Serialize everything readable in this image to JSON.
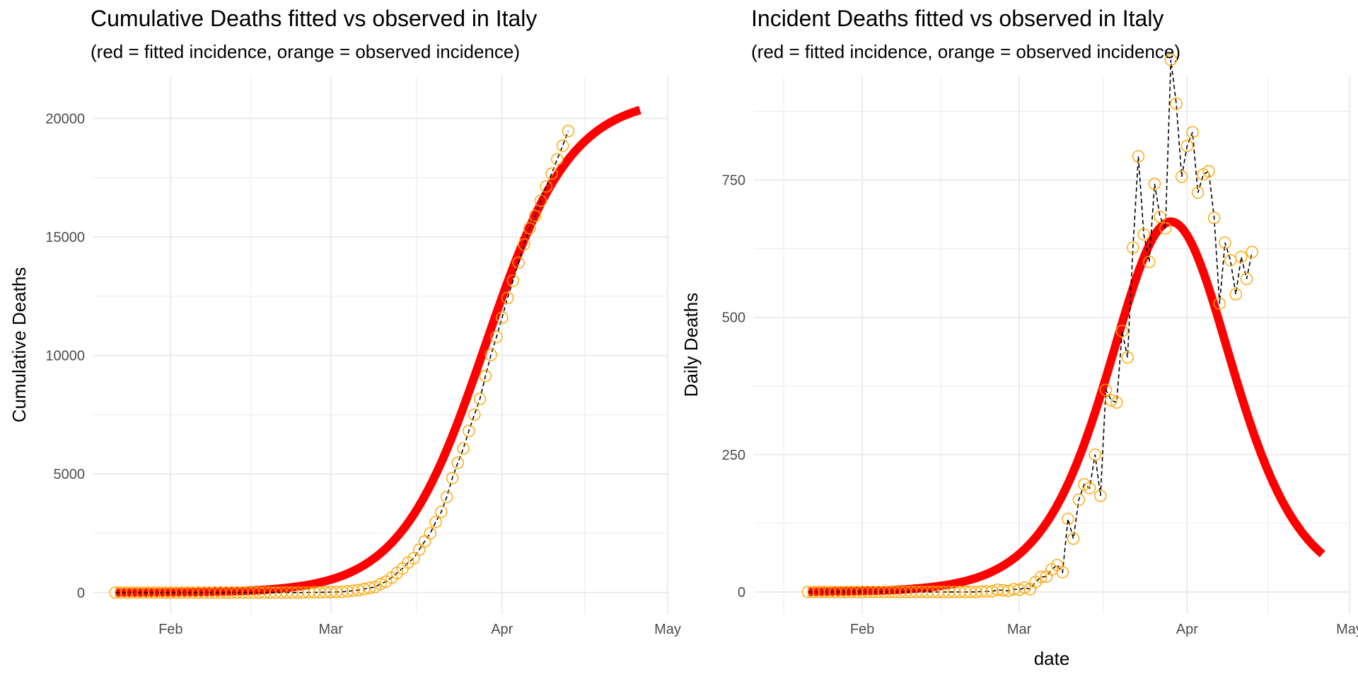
{
  "charts": {
    "left": {
      "title": "Cumulative Deaths fitted vs observed in Italy",
      "subtitle": "(red = fitted incidence, orange = observed incidence)"
    },
    "right": {
      "title": "Incident Deaths fitted vs observed in Italy",
      "subtitle": "(red = fitted incidence, orange = observed incidence)"
    }
  },
  "colors": {
    "fitted": "#ff0000",
    "observed": "#ffa500",
    "connector": "#000000",
    "grid": "#ebebeb"
  },
  "chart_data": [
    {
      "type": "line",
      "title": "Cumulative Deaths fitted vs observed in Italy",
      "subtitle": "(red = fitted incidence, orange = observed incidence)",
      "xlabel": "",
      "ylabel": "Cumulative Deaths",
      "x_axis": "date",
      "xlim": [
        "2020-01-18",
        "2020-05-01"
      ],
      "ylim": [
        -900,
        21800
      ],
      "x_ticks": [
        {
          "date": "2020-02-01",
          "label": "Feb"
        },
        {
          "date": "2020-03-01",
          "label": "Mar"
        },
        {
          "date": "2020-04-01",
          "label": "Apr"
        },
        {
          "date": "2020-05-01",
          "label": "May"
        }
      ],
      "y_ticks": [
        0,
        5000,
        10000,
        15000,
        20000
      ],
      "y_tick_labels": [
        "0",
        "5000",
        "10000",
        "15000",
        "20000"
      ],
      "grid": true,
      "fitted_start_date": "2020-01-22",
      "fitted_end_date": "2020-04-26",
      "fitted_total": 20900,
      "fitted_peak_date": "2020-03-29",
      "fitted_spread_days": 7.75,
      "observed_start_date": "2020-01-22",
      "observed_values": [
        0,
        0,
        0,
        0,
        0,
        0,
        0,
        0,
        0,
        0,
        0,
        0,
        0,
        0,
        0,
        0,
        0,
        0,
        0,
        0,
        0,
        0,
        0,
        0,
        0,
        0,
        0,
        0,
        0,
        0,
        0,
        0,
        1,
        2,
        3,
        7,
        10,
        12,
        17,
        21,
        29,
        34,
        52,
        79,
        107,
        148,
        197,
        233,
        366,
        463,
        631,
        827,
        1016,
        1266,
        1441,
        1809,
        2158,
        2503,
        2978,
        3405,
        4032,
        4825,
        5476,
        6077,
        6820,
        7503,
        8165,
        9134,
        10023,
        10779,
        11591,
        12428,
        13155,
        13915,
        14681,
        15362,
        15887,
        16523,
        17127,
        17669,
        18279,
        18849,
        19468
      ]
    },
    {
      "type": "line",
      "title": "Incident Deaths fitted vs observed in Italy",
      "subtitle": "(red = fitted incidence, orange = observed incidence)",
      "xlabel": "date",
      "ylabel": "Daily Deaths",
      "x_axis": "date",
      "xlim": [
        "2020-01-12",
        "2020-05-01"
      ],
      "ylim": [
        -40,
        940
      ],
      "x_ticks": [
        {
          "date": "2020-02-01",
          "label": "Feb"
        },
        {
          "date": "2020-03-01",
          "label": "Mar"
        },
        {
          "date": "2020-04-01",
          "label": "Apr"
        },
        {
          "date": "2020-05-01",
          "label": "May"
        }
      ],
      "y_ticks": [
        0,
        250,
        500,
        750
      ],
      "y_tick_labels": [
        "0",
        "250",
        "500",
        "750"
      ],
      "grid": true,
      "fitted_start_date": "2020-01-22",
      "fitted_end_date": "2020-04-26",
      "fitted_total": 20900,
      "fitted_peak_date": "2020-03-29",
      "fitted_spread_days": 7.75,
      "observed_start_date": "2020-01-22",
      "observed_values": [
        0,
        0,
        0,
        0,
        0,
        0,
        0,
        0,
        0,
        0,
        0,
        0,
        0,
        0,
        0,
        0,
        0,
        0,
        0,
        0,
        0,
        0,
        0,
        0,
        0,
        0,
        0,
        0,
        0,
        0,
        0,
        0,
        1,
        1,
        1,
        4,
        3,
        2,
        5,
        4,
        8,
        5,
        18,
        27,
        28,
        41,
        49,
        36,
        133,
        97,
        168,
        196,
        189,
        250,
        175,
        368,
        349,
        345,
        475,
        427,
        627,
        793,
        651,
        601,
        743,
        683,
        662,
        969,
        889,
        756,
        812,
        837,
        727,
        760,
        766,
        681,
        525,
        636,
        604,
        542,
        610,
        570,
        619
      ]
    }
  ]
}
